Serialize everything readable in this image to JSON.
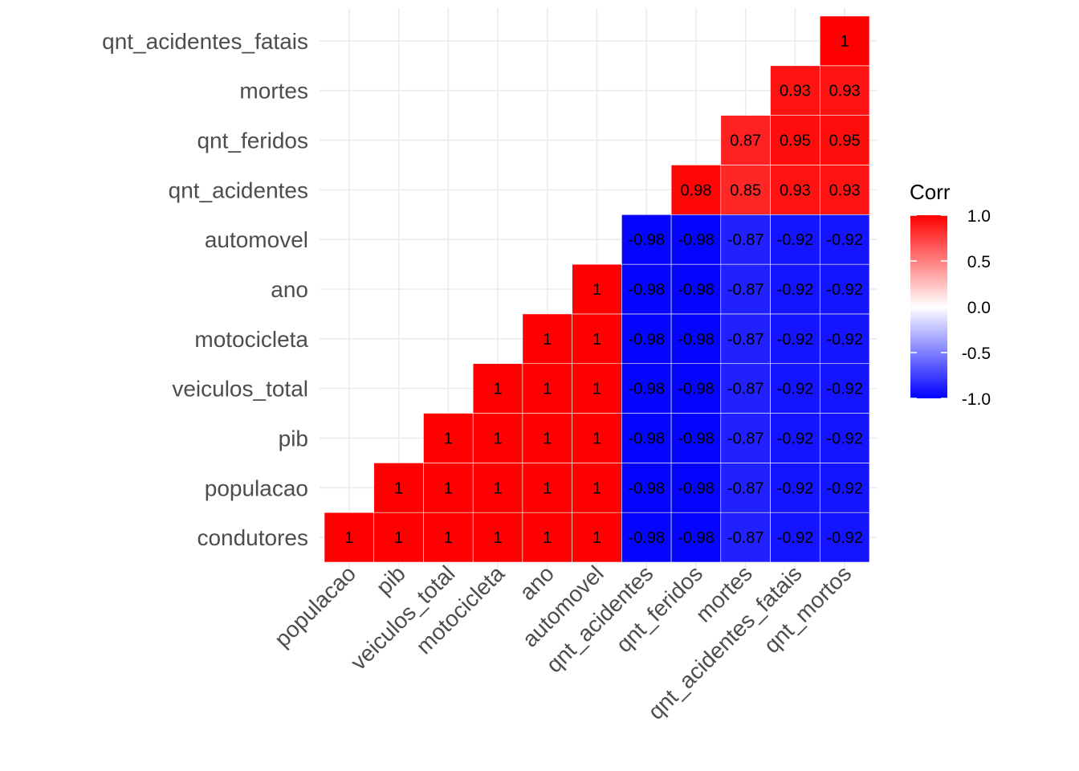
{
  "chart_data": {
    "type": "heatmap",
    "title": "",
    "xlabel": "",
    "ylabel": "",
    "x_categories": [
      "populacao",
      "pib",
      "veiculos_total",
      "motocicleta",
      "ano",
      "automovel",
      "qnt_acidentes",
      "qnt_feridos",
      "mortes",
      "qnt_acidentes_fatais",
      "qnt_mortos"
    ],
    "y_categories": [
      "condutores",
      "populacao",
      "pib",
      "veiculos_total",
      "motocicleta",
      "ano",
      "automovel",
      "qnt_acidentes",
      "qnt_feridos",
      "mortes",
      "qnt_acidentes_fatais"
    ],
    "cells": [
      {
        "x": "populacao",
        "y": "condutores",
        "value": 1
      },
      {
        "x": "pib",
        "y": "condutores",
        "value": 1
      },
      {
        "x": "veiculos_total",
        "y": "condutores",
        "value": 1
      },
      {
        "x": "motocicleta",
        "y": "condutores",
        "value": 1
      },
      {
        "x": "ano",
        "y": "condutores",
        "value": 1
      },
      {
        "x": "automovel",
        "y": "condutores",
        "value": 1
      },
      {
        "x": "qnt_acidentes",
        "y": "condutores",
        "value": -0.98
      },
      {
        "x": "qnt_feridos",
        "y": "condutores",
        "value": -0.98
      },
      {
        "x": "mortes",
        "y": "condutores",
        "value": -0.87
      },
      {
        "x": "qnt_acidentes_fatais",
        "y": "condutores",
        "value": -0.92
      },
      {
        "x": "qnt_mortos",
        "y": "condutores",
        "value": -0.92
      },
      {
        "x": "pib",
        "y": "populacao",
        "value": 1
      },
      {
        "x": "veiculos_total",
        "y": "populacao",
        "value": 1
      },
      {
        "x": "motocicleta",
        "y": "populacao",
        "value": 1
      },
      {
        "x": "ano",
        "y": "populacao",
        "value": 1
      },
      {
        "x": "automovel",
        "y": "populacao",
        "value": 1
      },
      {
        "x": "qnt_acidentes",
        "y": "populacao",
        "value": -0.98
      },
      {
        "x": "qnt_feridos",
        "y": "populacao",
        "value": -0.98
      },
      {
        "x": "mortes",
        "y": "populacao",
        "value": -0.87
      },
      {
        "x": "qnt_acidentes_fatais",
        "y": "populacao",
        "value": -0.92
      },
      {
        "x": "qnt_mortos",
        "y": "populacao",
        "value": -0.92
      },
      {
        "x": "veiculos_total",
        "y": "pib",
        "value": 1
      },
      {
        "x": "motocicleta",
        "y": "pib",
        "value": 1
      },
      {
        "x": "ano",
        "y": "pib",
        "value": 1
      },
      {
        "x": "automovel",
        "y": "pib",
        "value": 1
      },
      {
        "x": "qnt_acidentes",
        "y": "pib",
        "value": -0.98
      },
      {
        "x": "qnt_feridos",
        "y": "pib",
        "value": -0.98
      },
      {
        "x": "mortes",
        "y": "pib",
        "value": -0.87
      },
      {
        "x": "qnt_acidentes_fatais",
        "y": "pib",
        "value": -0.92
      },
      {
        "x": "qnt_mortos",
        "y": "pib",
        "value": -0.92
      },
      {
        "x": "motocicleta",
        "y": "veiculos_total",
        "value": 1
      },
      {
        "x": "ano",
        "y": "veiculos_total",
        "value": 1
      },
      {
        "x": "automovel",
        "y": "veiculos_total",
        "value": 1
      },
      {
        "x": "qnt_acidentes",
        "y": "veiculos_total",
        "value": -0.98
      },
      {
        "x": "qnt_feridos",
        "y": "veiculos_total",
        "value": -0.98
      },
      {
        "x": "mortes",
        "y": "veiculos_total",
        "value": -0.87
      },
      {
        "x": "qnt_acidentes_fatais",
        "y": "veiculos_total",
        "value": -0.92
      },
      {
        "x": "qnt_mortos",
        "y": "veiculos_total",
        "value": -0.92
      },
      {
        "x": "ano",
        "y": "motocicleta",
        "value": 1
      },
      {
        "x": "automovel",
        "y": "motocicleta",
        "value": 1
      },
      {
        "x": "qnt_acidentes",
        "y": "motocicleta",
        "value": -0.98
      },
      {
        "x": "qnt_feridos",
        "y": "motocicleta",
        "value": -0.98
      },
      {
        "x": "mortes",
        "y": "motocicleta",
        "value": -0.87
      },
      {
        "x": "qnt_acidentes_fatais",
        "y": "motocicleta",
        "value": -0.92
      },
      {
        "x": "qnt_mortos",
        "y": "motocicleta",
        "value": -0.92
      },
      {
        "x": "automovel",
        "y": "ano",
        "value": 1
      },
      {
        "x": "qnt_acidentes",
        "y": "ano",
        "value": -0.98
      },
      {
        "x": "qnt_feridos",
        "y": "ano",
        "value": -0.98
      },
      {
        "x": "mortes",
        "y": "ano",
        "value": -0.87
      },
      {
        "x": "qnt_acidentes_fatais",
        "y": "ano",
        "value": -0.92
      },
      {
        "x": "qnt_mortos",
        "y": "ano",
        "value": -0.92
      },
      {
        "x": "qnt_acidentes",
        "y": "automovel",
        "value": -0.98
      },
      {
        "x": "qnt_feridos",
        "y": "automovel",
        "value": -0.98
      },
      {
        "x": "mortes",
        "y": "automovel",
        "value": -0.87
      },
      {
        "x": "qnt_acidentes_fatais",
        "y": "automovel",
        "value": -0.92
      },
      {
        "x": "qnt_mortos",
        "y": "automovel",
        "value": -0.92
      },
      {
        "x": "qnt_feridos",
        "y": "qnt_acidentes",
        "value": 0.98
      },
      {
        "x": "mortes",
        "y": "qnt_acidentes",
        "value": 0.85
      },
      {
        "x": "qnt_acidentes_fatais",
        "y": "qnt_acidentes",
        "value": 0.93
      },
      {
        "x": "qnt_mortos",
        "y": "qnt_acidentes",
        "value": 0.93
      },
      {
        "x": "mortes",
        "y": "qnt_feridos",
        "value": 0.87
      },
      {
        "x": "qnt_acidentes_fatais",
        "y": "qnt_feridos",
        "value": 0.95
      },
      {
        "x": "qnt_mortos",
        "y": "qnt_feridos",
        "value": 0.95
      },
      {
        "x": "qnt_acidentes_fatais",
        "y": "mortes",
        "value": 0.93
      },
      {
        "x": "qnt_mortos",
        "y": "mortes",
        "value": 0.93
      },
      {
        "x": "qnt_mortos",
        "y": "qnt_acidentes_fatais",
        "value": 1
      }
    ],
    "legend": {
      "title": "Corr",
      "ticks": [
        "1.0",
        "0.5",
        "0.0",
        "-0.5",
        "-1.0"
      ],
      "tick_values": [
        1.0,
        0.5,
        0.0,
        -0.5,
        -1.0
      ],
      "range": [
        -1,
        1
      ],
      "placement": "right"
    },
    "color_scale": {
      "low": "#0000ff",
      "mid": "#ffffff",
      "high": "#ff0000"
    },
    "grid": true
  }
}
